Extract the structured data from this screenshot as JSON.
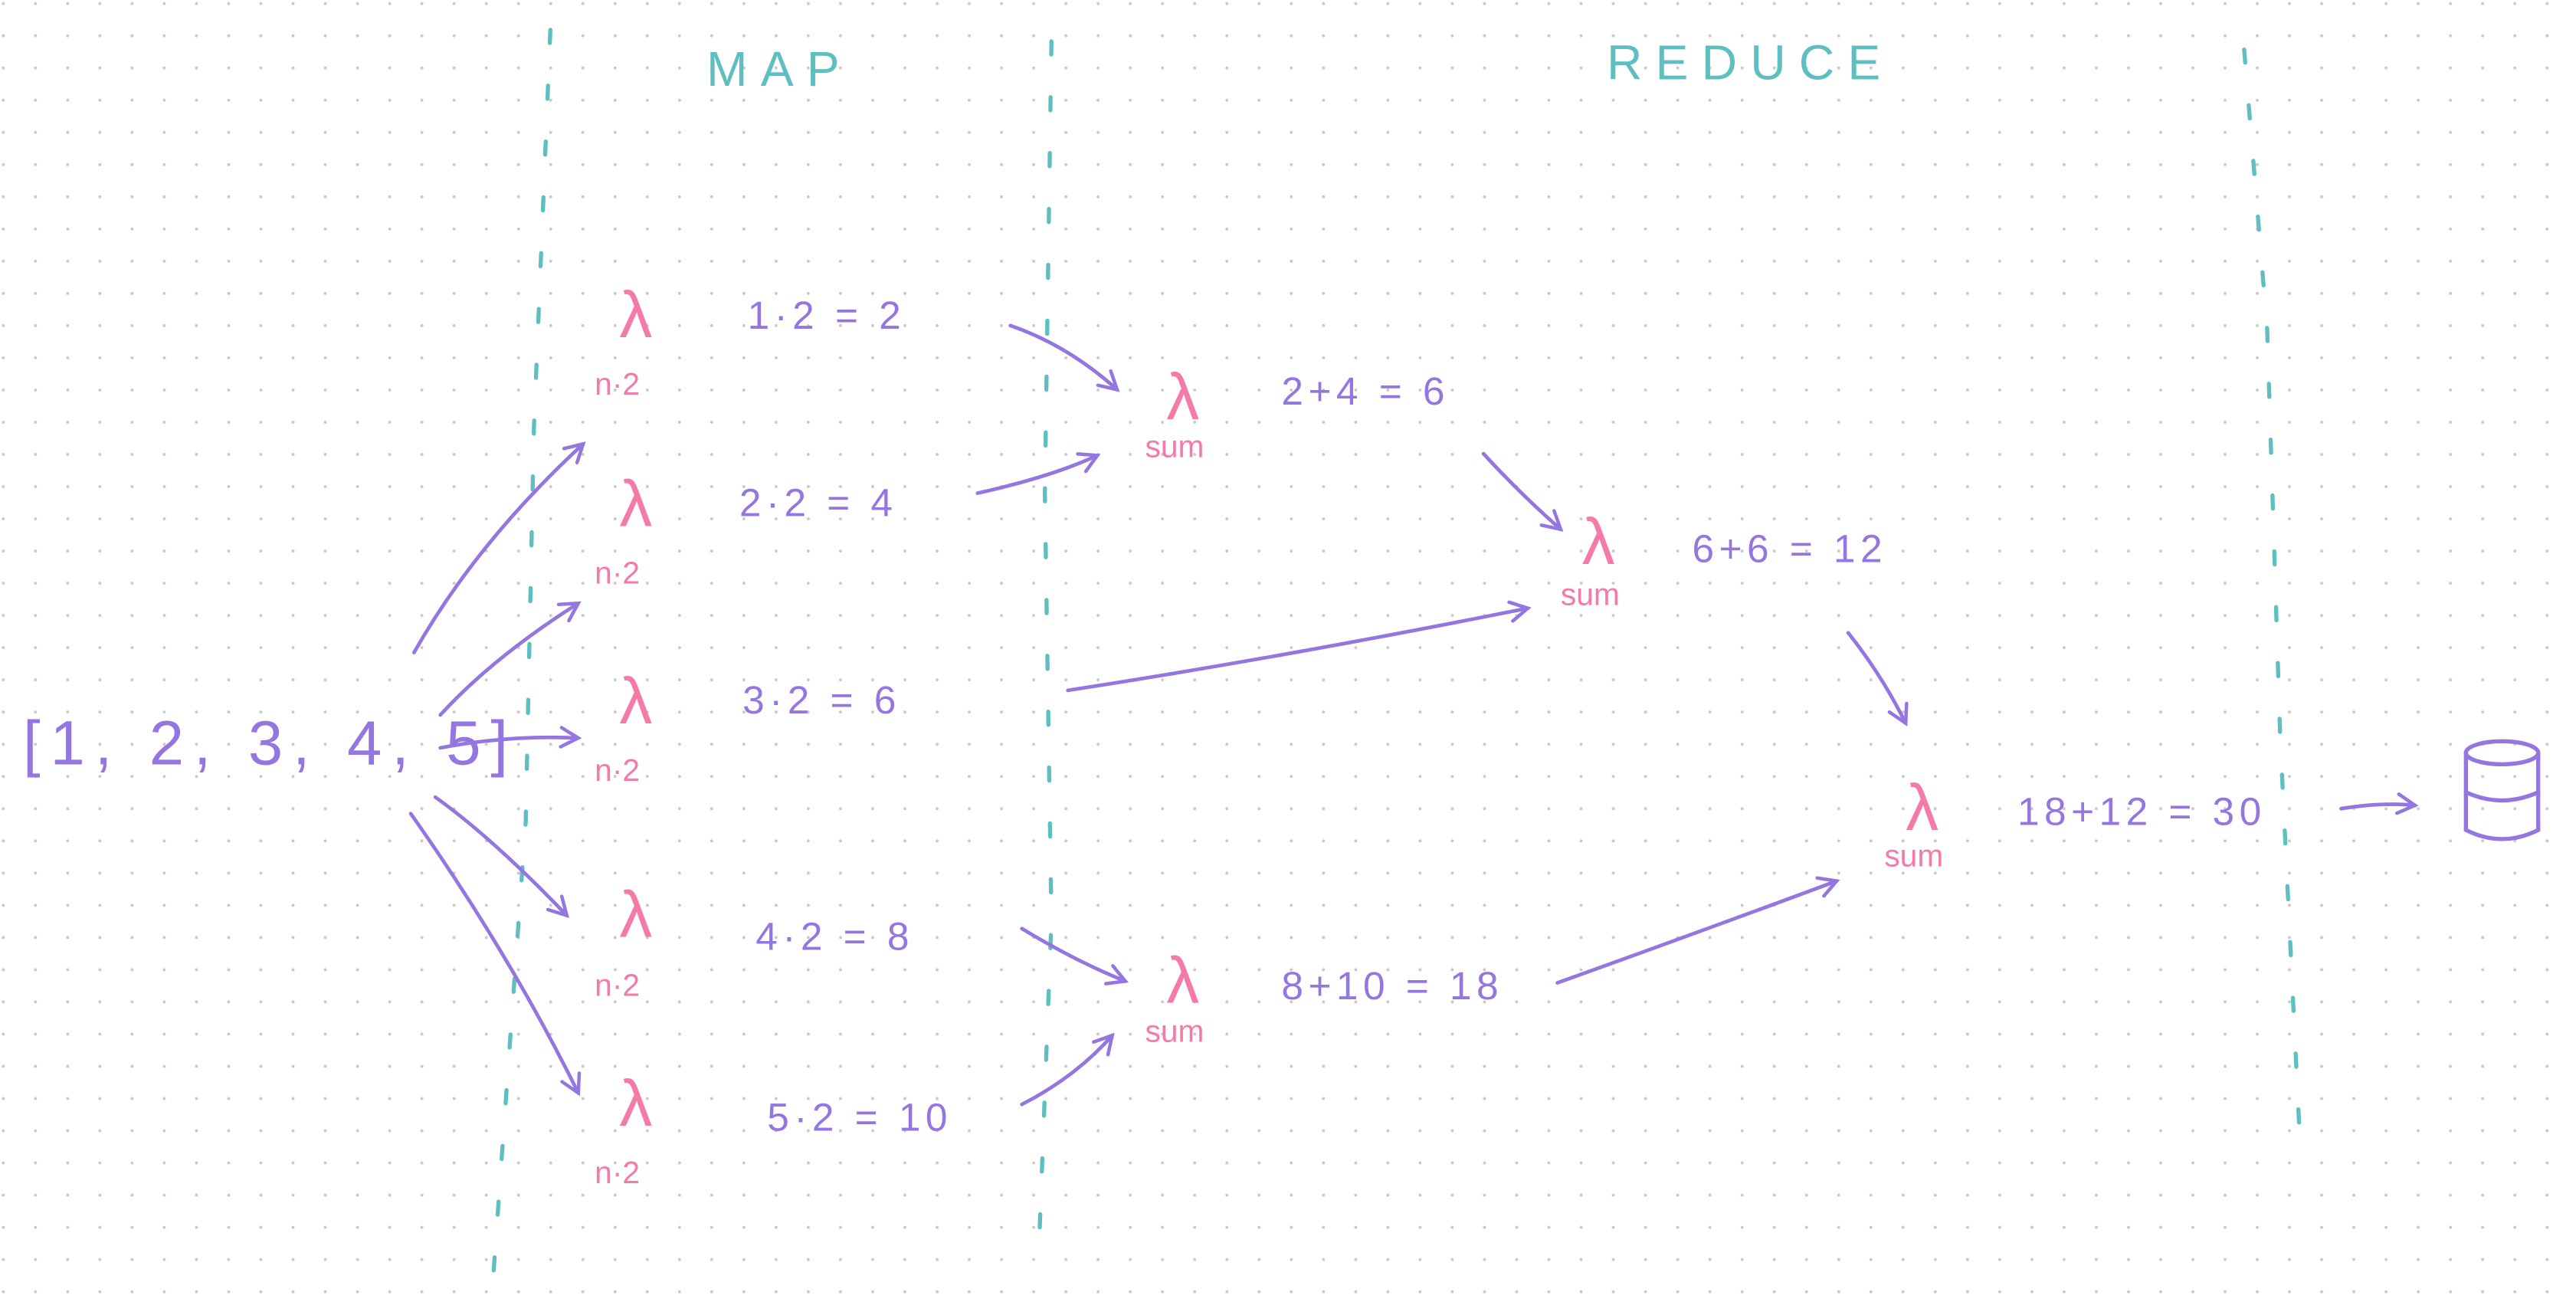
{
  "headers": {
    "map": "MAP",
    "reduce": "REDUCE"
  },
  "input_array": "[1, 2, 3, 4, 5]",
  "map_function": {
    "symbol": "λ",
    "label": "n·2"
  },
  "map_results": [
    "1·2 = 2",
    "2·2 = 4",
    "3·2 = 6",
    "4·2 = 8",
    "5·2 = 10"
  ],
  "reduce_function": {
    "symbol": "λ",
    "label": "sum"
  },
  "reduce_results": [
    "2+4 = 6",
    "6+6 = 12",
    "8+10 = 18",
    "18+12 = 30"
  ],
  "output_icon": "database-cylinder-icon",
  "colors": {
    "ink": "#9476e0",
    "lambda": "#f47aa8",
    "divider": "#5fbfc0",
    "grid_dots": "#c8c8c8"
  }
}
